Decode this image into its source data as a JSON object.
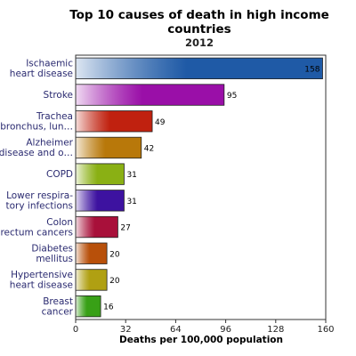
{
  "chart_data": {
    "type": "bar",
    "orientation": "horizontal",
    "title": "Top 10 causes of death in high income countries",
    "subtitle": "2012",
    "xlabel": "Deaths per 100,000 population",
    "ylabel": "",
    "xlim": [
      0,
      160
    ],
    "xticks": [
      0,
      32,
      64,
      96,
      128,
      160
    ],
    "grid": false,
    "legend": "none",
    "categories": [
      [
        "Ischaemic",
        "heart disease"
      ],
      [
        "Stroke"
      ],
      [
        "Trachea",
        "bronchus, lun…"
      ],
      [
        "Alzheimer",
        "disease and o…"
      ],
      [
        "COPD"
      ],
      [
        "Lower respira-",
        "tory infections"
      ],
      [
        "Colon",
        "rectum cancers"
      ],
      [
        "Diabetes",
        "mellitus"
      ],
      [
        "Hypertensive",
        "heart disease"
      ],
      [
        "Breast",
        "cancer"
      ]
    ],
    "values": [
      158,
      95,
      49,
      42,
      31,
      31,
      27,
      20,
      20,
      16
    ],
    "colors": [
      "#1f5aa6",
      "#9a0fa8",
      "#c0210f",
      "#b8780a",
      "#8ab014",
      "#3d12a0",
      "#a8103a",
      "#b8500a",
      "#b0a012",
      "#38a016"
    ]
  }
}
